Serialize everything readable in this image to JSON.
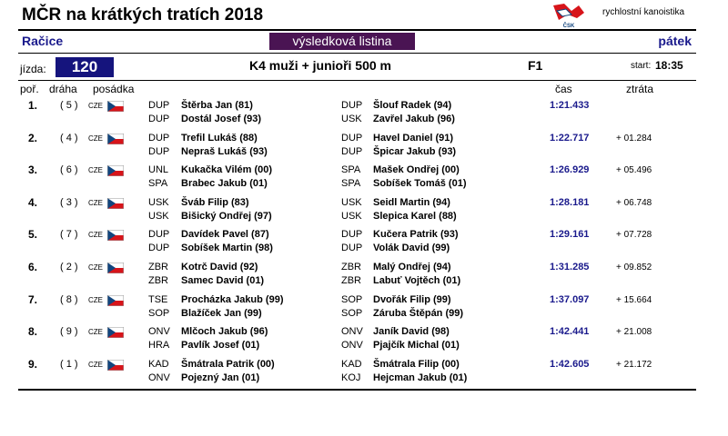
{
  "header": {
    "title": "MČR na krátkých tratích 2018",
    "brand": "rychlostní kanoistika",
    "logo_text": "ČSK",
    "venue": "Račice",
    "doc_type": "výsledková listina",
    "day": "pátek"
  },
  "race": {
    "label": "jízda:",
    "number": "120",
    "name": "K4 muži + junioři 500 m",
    "final": "F1",
    "start_label": "start:",
    "start_time": "18:35"
  },
  "columns": {
    "rank": "poř.",
    "lane": "dráha",
    "crew": "posádka",
    "time": "čas",
    "gap": "ztráta"
  },
  "flag_colors": {
    "white": "#ffffff",
    "red": "#d7141a",
    "blue": "#11457e"
  },
  "rows": [
    {
      "rank": "1.",
      "lane": "( 5 )",
      "nation": "CZE",
      "time": "1:21.433",
      "gap": "",
      "paddlers": [
        {
          "club": "DUP",
          "name": "Štěrba Jan (81)"
        },
        {
          "club": "DUP",
          "name": "Šlouf Radek (94)"
        },
        {
          "club": "DUP",
          "name": "Dostál Josef (93)"
        },
        {
          "club": "USK",
          "name": "Zavřel Jakub (96)"
        }
      ]
    },
    {
      "rank": "2.",
      "lane": "( 4 )",
      "nation": "CZE",
      "time": "1:22.717",
      "gap": "+ 01.284",
      "paddlers": [
        {
          "club": "DUP",
          "name": "Trefil Lukáš (88)"
        },
        {
          "club": "DUP",
          "name": "Havel Daniel (91)"
        },
        {
          "club": "DUP",
          "name": "Nepraš Lukáš (93)"
        },
        {
          "club": "DUP",
          "name": "Špicar Jakub (93)"
        }
      ]
    },
    {
      "rank": "3.",
      "lane": "( 6 )",
      "nation": "CZE",
      "time": "1:26.929",
      "gap": "+ 05.496",
      "paddlers": [
        {
          "club": "UNL",
          "name": "Kukačka Vilém (00)"
        },
        {
          "club": "SPA",
          "name": "Mašek Ondřej (00)"
        },
        {
          "club": "SPA",
          "name": "Brabec Jakub (01)"
        },
        {
          "club": "SPA",
          "name": "Sobíšek Tomáš (01)"
        }
      ]
    },
    {
      "rank": "4.",
      "lane": "( 3 )",
      "nation": "CZE",
      "time": "1:28.181",
      "gap": "+ 06.748",
      "paddlers": [
        {
          "club": "USK",
          "name": "Šváb Filip (83)"
        },
        {
          "club": "USK",
          "name": "Seidl Martin (94)"
        },
        {
          "club": "USK",
          "name": "Bišický Ondřej (97)"
        },
        {
          "club": "USK",
          "name": "Slepica Karel (88)"
        }
      ]
    },
    {
      "rank": "5.",
      "lane": "( 7 )",
      "nation": "CZE",
      "time": "1:29.161",
      "gap": "+ 07.728",
      "paddlers": [
        {
          "club": "DUP",
          "name": "Davídek Pavel (87)"
        },
        {
          "club": "DUP",
          "name": "Kučera Patrik (93)"
        },
        {
          "club": "DUP",
          "name": "Sobíšek Martin (98)"
        },
        {
          "club": "DUP",
          "name": "Volák David (99)"
        }
      ]
    },
    {
      "rank": "6.",
      "lane": "( 2 )",
      "nation": "CZE",
      "time": "1:31.285",
      "gap": "+ 09.852",
      "paddlers": [
        {
          "club": "ZBR",
          "name": "Kotrč David (92)"
        },
        {
          "club": "ZBR",
          "name": "Malý Ondřej (94)"
        },
        {
          "club": "ZBR",
          "name": "Samec David (01)"
        },
        {
          "club": "ZBR",
          "name": "Labuť Vojtěch (01)"
        }
      ]
    },
    {
      "rank": "7.",
      "lane": "( 8 )",
      "nation": "CZE",
      "time": "1:37.097",
      "gap": "+ 15.664",
      "paddlers": [
        {
          "club": "TSE",
          "name": "Procházka Jakub (99)"
        },
        {
          "club": "SOP",
          "name": "Dvořák Filip (99)"
        },
        {
          "club": "SOP",
          "name": "Blažíček Jan (99)"
        },
        {
          "club": "SOP",
          "name": "Záruba Štěpán (99)"
        }
      ]
    },
    {
      "rank": "8.",
      "lane": "( 9 )",
      "nation": "CZE",
      "time": "1:42.441",
      "gap": "+ 21.008",
      "paddlers": [
        {
          "club": "ONV",
          "name": "Mlčoch Jakub (96)"
        },
        {
          "club": "ONV",
          "name": "Janík David (98)"
        },
        {
          "club": "HRA",
          "name": "Pavlík Josef (01)"
        },
        {
          "club": "ONV",
          "name": "Pjajčík Michal (01)"
        }
      ]
    },
    {
      "rank": "9.",
      "lane": "( 1 )",
      "nation": "CZE",
      "time": "1:42.605",
      "gap": "+ 21.172",
      "paddlers": [
        {
          "club": "KAD",
          "name": "Šmátrala Patrik (00)"
        },
        {
          "club": "KAD",
          "name": "Šmátrala Filip (00)"
        },
        {
          "club": "ONV",
          "name": "Pojezný Jan (01)"
        },
        {
          "club": "KOJ",
          "name": "Hejcman Jakub (01)"
        }
      ]
    }
  ]
}
